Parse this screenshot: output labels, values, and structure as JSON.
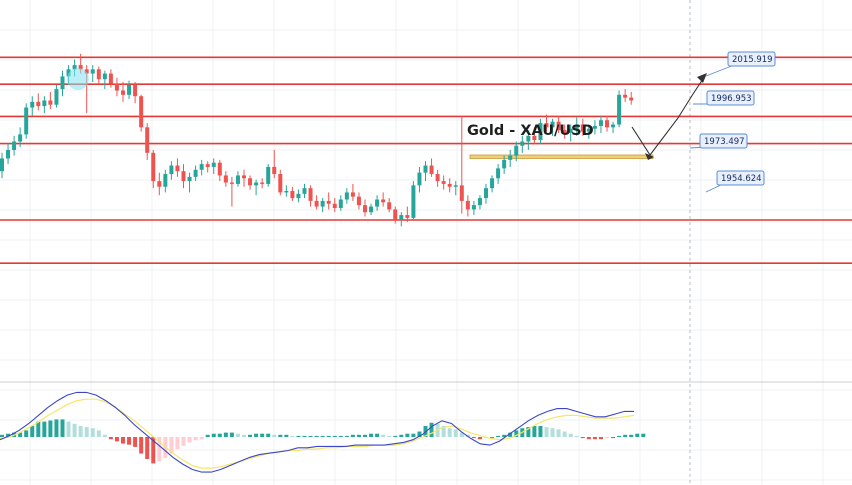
{
  "chart_data": {
    "type": "candlestick",
    "title": "Gold - XAU/USD",
    "colors": {
      "up": "#26a69a",
      "down": "#ef5350",
      "level_line": "#e53935",
      "label_border": "#5b8dd6",
      "label_fill": "#e8f0fb",
      "label_text": "#1a2a66",
      "macd_line": "#3b47c8",
      "signal_line": "#f5e66a",
      "zone_fill": "#f2cf74"
    },
    "price_labels": [
      "2015.919",
      "1996.953",
      "1973.497",
      "1954.624"
    ],
    "horizontal_levels": [
      2017.5,
      1998.5,
      1975.7,
      1956.5,
      1902.5,
      1872.0
    ],
    "y_range": [
      1788,
      2058
    ],
    "candles": [
      [
        1937,
        1950,
        1932,
        1946
      ],
      [
        1946,
        1957,
        1942,
        1952
      ],
      [
        1952,
        1962,
        1948,
        1958
      ],
      [
        1958,
        1968,
        1954,
        1963
      ],
      [
        1963,
        1985,
        1960,
        1982
      ],
      [
        1982,
        1990,
        1976,
        1986
      ],
      [
        1986,
        1992,
        1980,
        1983
      ],
      [
        1983,
        1990,
        1978,
        1987
      ],
      [
        1987,
        1993,
        1981,
        1984
      ],
      [
        1984,
        1998,
        1982,
        1995
      ],
      [
        1995,
        2008,
        1990,
        2004
      ],
      [
        2004,
        2012,
        1998,
        2009
      ],
      [
        2009,
        2016,
        2004,
        2012
      ],
      [
        2012,
        2020,
        2006,
        2009
      ],
      [
        2009,
        2012,
        1978,
        2006
      ],
      [
        2006,
        2012,
        2000,
        2009
      ],
      [
        2009,
        2011,
        1998,
        2002
      ],
      [
        2002,
        2008,
        1995,
        2006
      ],
      [
        2006,
        2009,
        1996,
        1999
      ],
      [
        1999,
        2003,
        1990,
        1994
      ],
      [
        1994,
        2000,
        1986,
        1991
      ],
      [
        1991,
        2001,
        1988,
        1998
      ],
      [
        1998,
        2000,
        1985,
        1990
      ],
      [
        1990,
        1991,
        1965,
        1968
      ],
      [
        1968,
        1971,
        1945,
        1950
      ],
      [
        1950,
        1952,
        1925,
        1930
      ],
      [
        1930,
        1936,
        1920,
        1926
      ],
      [
        1926,
        1938,
        1922,
        1935
      ],
      [
        1935,
        1944,
        1931,
        1941
      ],
      [
        1941,
        1946,
        1933,
        1937
      ],
      [
        1937,
        1942,
        1925,
        1930
      ],
      [
        1930,
        1936,
        1922,
        1933
      ],
      [
        1933,
        1941,
        1930,
        1938
      ],
      [
        1938,
        1945,
        1934,
        1942
      ],
      [
        1942,
        1944,
        1936,
        1940
      ],
      [
        1940,
        1946,
        1935,
        1943
      ],
      [
        1943,
        1945,
        1930,
        1934
      ],
      [
        1934,
        1937,
        1926,
        1929
      ],
      [
        1929,
        1933,
        1912,
        1928
      ],
      [
        1928,
        1937,
        1926,
        1934
      ],
      [
        1934,
        1938,
        1926,
        1932
      ],
      [
        1932,
        1934,
        1924,
        1927
      ],
      [
        1927,
        1931,
        1920,
        1929
      ],
      [
        1929,
        1932,
        1925,
        1928
      ],
      [
        1928,
        1942,
        1926,
        1940
      ],
      [
        1940,
        1952,
        1932,
        1935
      ],
      [
        1935,
        1938,
        1920,
        1922
      ],
      [
        1922,
        1927,
        1919,
        1923
      ],
      [
        1923,
        1926,
        1916,
        1918
      ],
      [
        1918,
        1924,
        1915,
        1921
      ],
      [
        1921,
        1928,
        1918,
        1925
      ],
      [
        1925,
        1927,
        1912,
        1916
      ],
      [
        1916,
        1920,
        1910,
        1912
      ],
      [
        1912,
        1918,
        1908,
        1916
      ],
      [
        1916,
        1922,
        1910,
        1914
      ],
      [
        1914,
        1918,
        1908,
        1911
      ],
      [
        1911,
        1920,
        1909,
        1917
      ],
      [
        1917,
        1925,
        1914,
        1922
      ],
      [
        1922,
        1928,
        1916,
        1919
      ],
      [
        1919,
        1922,
        1910,
        1913
      ],
      [
        1913,
        1917,
        1905,
        1908
      ],
      [
        1908,
        1914,
        1906,
        1912
      ],
      [
        1912,
        1920,
        1909,
        1917
      ],
      [
        1917,
        1922,
        1912,
        1915
      ],
      [
        1915,
        1918,
        1908,
        1910
      ],
      [
        1910,
        1912,
        1900,
        1903
      ],
      [
        1903,
        1908,
        1898,
        1906
      ],
      [
        1906,
        1912,
        1901,
        1904
      ],
      [
        1904,
        1930,
        1902,
        1927
      ],
      [
        1927,
        1940,
        1922,
        1936
      ],
      [
        1936,
        1944,
        1930,
        1941
      ],
      [
        1941,
        1946,
        1933,
        1935
      ],
      [
        1935,
        1938,
        1926,
        1930
      ],
      [
        1930,
        1934,
        1924,
        1928
      ],
      [
        1928,
        1932,
        1922,
        1926
      ],
      [
        1926,
        1930,
        1920,
        1927
      ],
      [
        1927,
        1976,
        1907,
        1916
      ],
      [
        1916,
        1920,
        1905,
        1910
      ],
      [
        1910,
        1916,
        1906,
        1913
      ],
      [
        1913,
        1920,
        1910,
        1918
      ],
      [
        1918,
        1928,
        1914,
        1925
      ],
      [
        1925,
        1934,
        1922,
        1932
      ],
      [
        1932,
        1942,
        1928,
        1939
      ],
      [
        1939,
        1948,
        1935,
        1945
      ],
      [
        1945,
        1952,
        1940,
        1948
      ],
      [
        1948,
        1958,
        1944,
        1955
      ],
      [
        1955,
        1962,
        1950,
        1958
      ],
      [
        1958,
        1966,
        1952,
        1962
      ],
      [
        1962,
        1968,
        1956,
        1959
      ],
      [
        1959,
        1974,
        1956,
        1971
      ],
      [
        1971,
        1977,
        1965,
        1968
      ],
      [
        1968,
        1974,
        1962,
        1972
      ],
      [
        1972,
        1976,
        1964,
        1966
      ],
      [
        1966,
        1970,
        1960,
        1964
      ],
      [
        1964,
        1970,
        1958,
        1967
      ],
      [
        1967,
        1975,
        1962,
        1970
      ],
      [
        1970,
        1974,
        1962,
        1965
      ],
      [
        1965,
        1970,
        1960,
        1967
      ],
      [
        1967,
        1973,
        1963,
        1969
      ],
      [
        1969,
        1976,
        1964,
        1973
      ],
      [
        1973,
        1976,
        1965,
        1968
      ],
      [
        1968,
        1972,
        1964,
        1970
      ],
      [
        1970,
        1994,
        1968,
        1991
      ],
      [
        1991,
        1995,
        1986,
        1989
      ],
      [
        1989,
        1993,
        1984,
        1987
      ]
    ],
    "macd_histogram": [
      2,
      3,
      4,
      4,
      6,
      10,
      14,
      14,
      15,
      16,
      16,
      14,
      12,
      10,
      9,
      8,
      6,
      2,
      -2,
      -4,
      -6,
      -7,
      -9,
      -15,
      -20,
      -24,
      -22,
      -19,
      -15,
      -11,
      -8,
      -5,
      -3,
      -2,
      2,
      3,
      3,
      4,
      4,
      3,
      2,
      2,
      3,
      3,
      3,
      2,
      2,
      2,
      1,
      1,
      1,
      1,
      1,
      1,
      1,
      1,
      1,
      1,
      2,
      2,
      2,
      3,
      3,
      2,
      1,
      1,
      2,
      3,
      3,
      5,
      10,
      13,
      12,
      10,
      8,
      7,
      4,
      2,
      -1,
      -2,
      -1,
      -1,
      1,
      2,
      4,
      6,
      8,
      9,
      10,
      10,
      9,
      8,
      7,
      5,
      3,
      1,
      -1,
      -2,
      -2,
      -2,
      -1,
      -1,
      1,
      2,
      2,
      3,
      3
    ],
    "macd_line": [
      -2,
      1,
      5,
      10,
      16,
      22,
      27,
      31,
      33,
      33,
      31,
      27,
      22,
      16,
      9,
      3,
      -3,
      -9,
      -15,
      -20,
      -24,
      -26,
      -26,
      -24,
      -21,
      -18,
      -15,
      -13,
      -12,
      -11,
      -10,
      -8,
      -8,
      -7,
      -7,
      -7,
      -7,
      -6,
      -6,
      -6,
      -6,
      -5,
      -4,
      -2,
      2,
      8,
      12,
      10,
      4,
      -1,
      -5,
      -6,
      -3,
      2,
      7,
      12,
      16,
      19,
      21,
      21,
      19,
      17,
      15,
      15,
      17,
      19,
      19
    ],
    "signal_line": [
      -1,
      0,
      3,
      7,
      11,
      16,
      20,
      24,
      27,
      28,
      28,
      26,
      22,
      17,
      12,
      6,
      0,
      -6,
      -12,
      -17,
      -21,
      -23,
      -23,
      -22,
      -20,
      -18,
      -16,
      -14,
      -12,
      -11,
      -10,
      -10,
      -9,
      -9,
      -8,
      -8,
      -7,
      -7,
      -7,
      -6,
      -6,
      -6,
      -5,
      -3,
      0,
      3,
      7,
      8,
      6,
      3,
      1,
      -1,
      -2,
      -1,
      2,
      6,
      10,
      13,
      15,
      16,
      16,
      15,
      14,
      14,
      14,
      15,
      16
    ]
  }
}
